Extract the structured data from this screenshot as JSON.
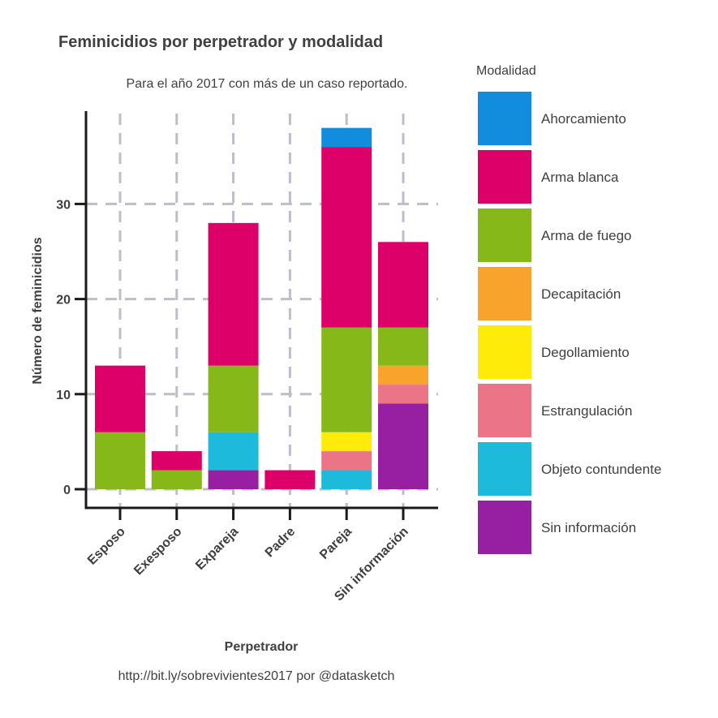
{
  "chart_data": {
    "type": "bar",
    "stacked": true,
    "title": "Feminicidios por perpetrador y modalidad",
    "subtitle": "Para el año 2017 con más de un caso reportado.",
    "xlabel": "Perpetrador",
    "ylabel": "Número de feminicidios",
    "caption": "http://bit.ly/sobrevivientes2017 por @datasketch",
    "legend_title": "Modalidad",
    "legend_position": "right",
    "grid": true,
    "ylim": [
      0,
      38
    ],
    "yticks": [
      0,
      10,
      20,
      30
    ],
    "categories": [
      "Esposo",
      "Exesposo",
      "Expareja",
      "Padre",
      "Pareja",
      "Sin información"
    ],
    "series": [
      {
        "name": "Sin información",
        "color": "#971FA1",
        "values": [
          0,
          0,
          2,
          0,
          0,
          9
        ]
      },
      {
        "name": "Objeto contundente",
        "color": "#1EBADC",
        "values": [
          0,
          0,
          4,
          0,
          2,
          0
        ]
      },
      {
        "name": "Estrangulación",
        "color": "#EB7486",
        "values": [
          0,
          0,
          0,
          0,
          2,
          2
        ]
      },
      {
        "name": "Degollamiento",
        "color": "#FFEB0A",
        "values": [
          0,
          0,
          0,
          0,
          2,
          0
        ]
      },
      {
        "name": "Decapitación",
        "color": "#F7A32C",
        "values": [
          0,
          0,
          0,
          0,
          0,
          2
        ]
      },
      {
        "name": "Arma de fuego",
        "color": "#86B81A",
        "values": [
          6,
          2,
          7,
          0,
          11,
          4
        ]
      },
      {
        "name": "Arma blanca",
        "color": "#DC0068",
        "values": [
          7,
          2,
          15,
          2,
          19,
          9
        ]
      },
      {
        "name": "Ahorcamiento",
        "color": "#128CDC",
        "values": [
          0,
          0,
          0,
          0,
          2,
          0
        ]
      }
    ],
    "legend_order": [
      "Ahorcamiento",
      "Arma blanca",
      "Arma de fuego",
      "Decapitación",
      "Degollamiento",
      "Estrangulación",
      "Objeto contundente",
      "Sin información"
    ]
  },
  "colors": {
    "grid": "#BDBDCC",
    "axis": "#1A1A1A",
    "text": "#404040"
  }
}
